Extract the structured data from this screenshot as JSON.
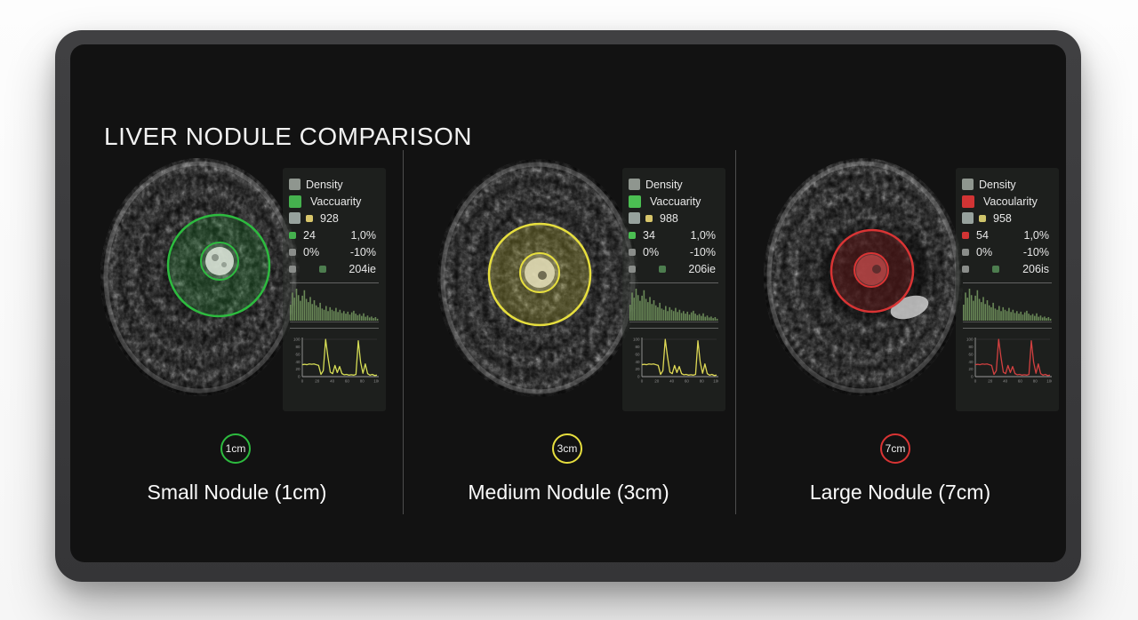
{
  "title": "LIVER NODULE COMPARISON",
  "panels": [
    {
      "name": "small-nodule",
      "badge": "1cm",
      "caption": "Small Nodule (1cm)",
      "accent": "#2dbb3f",
      "legend_swatch": "#45b14e",
      "line_color": "#d6dd55",
      "legend": {
        "density": "Density",
        "vascularity": "Vaccuarity",
        "value_a": "928",
        "value_b": "24",
        "value_b_pct": "1,0%",
        "value_c": "0%",
        "value_c_pct": "-10%",
        "value_d": "204ie"
      }
    },
    {
      "name": "medium-nodule",
      "badge": "3cm",
      "caption": "Medium Nodule (3cm)",
      "accent": "#e6de3e",
      "legend_swatch": "#4bbf52",
      "line_color": "#dfd955",
      "legend": {
        "density": "Density",
        "vascularity": "Vaccuarity",
        "value_a": "988",
        "value_b": "34",
        "value_b_pct": "1,0%",
        "value_c": "0%",
        "value_c_pct": "-10%",
        "value_d": "206ie"
      }
    },
    {
      "name": "large-nodule",
      "badge": "7cm",
      "caption": "Large Nodule (7cm)",
      "accent": "#d93434",
      "legend_swatch": "#d23434",
      "line_color": "#d24040",
      "legend": {
        "density": "Density",
        "vascularity": "Vacoularity",
        "value_a": "958",
        "value_b": "54",
        "value_b_pct": "1,0%",
        "value_c": "0%",
        "value_c_pct": "-10%",
        "value_d": "206is"
      }
    }
  ],
  "chart_data": [
    {
      "type": "area",
      "title": "density-histogram",
      "repeats_in": "all-panels",
      "color": "#72935e",
      "ylim": [
        0,
        1
      ],
      "values": [
        0.5,
        0.88,
        0.72,
        1.0,
        0.8,
        0.62,
        0.78,
        0.95,
        0.68,
        0.58,
        0.74,
        0.52,
        0.64,
        0.48,
        0.42,
        0.56,
        0.38,
        0.34,
        0.46,
        0.3,
        0.42,
        0.34,
        0.3,
        0.4,
        0.27,
        0.34,
        0.24,
        0.3,
        0.22,
        0.28,
        0.19,
        0.26,
        0.31,
        0.22,
        0.17,
        0.21,
        0.15,
        0.23,
        0.12,
        0.16,
        0.1,
        0.13,
        0.08,
        0.11,
        0.06
      ]
    },
    {
      "type": "line",
      "title": "vascularity-profile",
      "repeats_in": "all-panels",
      "ylim": [
        0,
        100
      ],
      "y_ticks": [
        "100",
        "80",
        "60",
        "40",
        "20",
        "0"
      ],
      "x_ticks": [
        "0",
        "20",
        "40",
        "60",
        "80",
        "100"
      ],
      "values": [
        32,
        33,
        32,
        34,
        33,
        34,
        32,
        30,
        6,
        16,
        100,
        52,
        12,
        8,
        30,
        11,
        27,
        8,
        5,
        6,
        4,
        5,
        4,
        6,
        96,
        38,
        9,
        34,
        8,
        4,
        6,
        3,
        4
      ],
      "series": [
        {
          "name": "small-nodule",
          "color": "#d6dd55"
        },
        {
          "name": "medium-nodule",
          "color": "#dfd955"
        },
        {
          "name": "large-nodule",
          "color": "#d24040"
        }
      ]
    }
  ]
}
